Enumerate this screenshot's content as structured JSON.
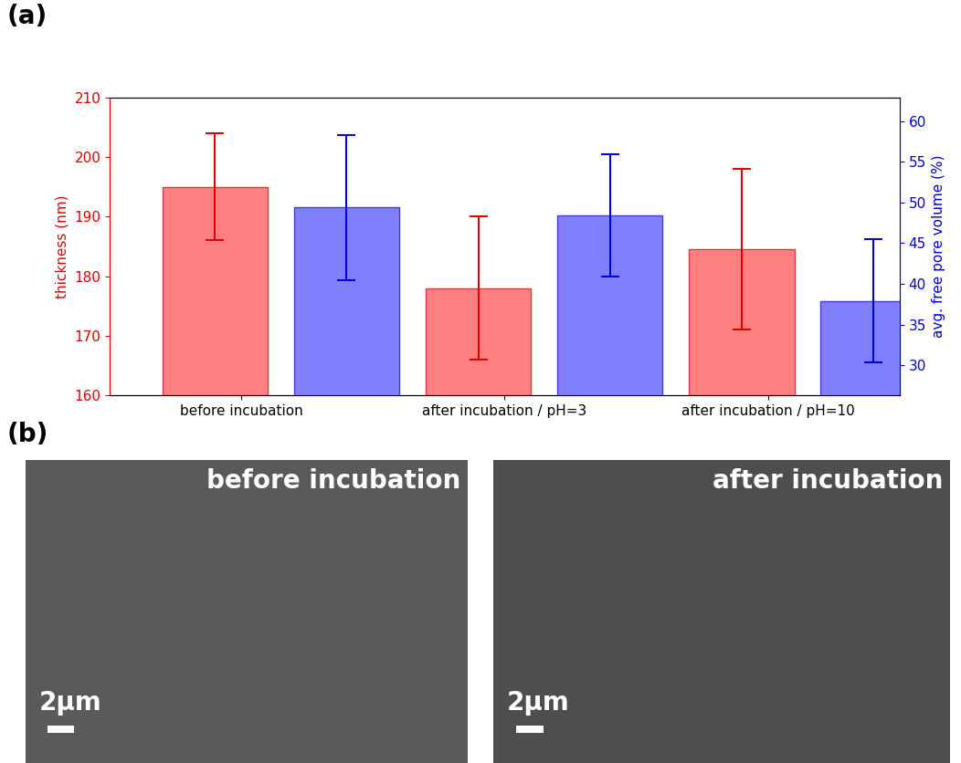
{
  "chart_data": {
    "type": "bar",
    "categories": [
      "before incubation",
      "after incubation / pH=3",
      "after incubation / pH=10"
    ],
    "y_label": "thickness (nm)",
    "y2_label": "avg. free pore volume (%)",
    "ylim": [
      160,
      210
    ],
    "yticks": [
      160,
      170,
      180,
      190,
      200,
      210
    ],
    "y2lim": [
      26.3,
      62.9
    ],
    "y2ticks": [
      30,
      35,
      40,
      45,
      50,
      55,
      60
    ],
    "series": [
      {
        "color": "#ff8080",
        "values": [
          195,
          178,
          184.5
        ],
        "errors": [
          9,
          12,
          13.5
        ]
      },
      {
        "color": "#8080ff",
        "values": [
          49.4,
          48.4,
          37.9
        ],
        "errors": [
          8.9,
          7.5,
          7.6
        ],
        "axis": "y2"
      }
    ]
  },
  "panel_labels": [
    "(a)",
    "(b)"
  ],
  "images": [
    {
      "label": "before incubation",
      "scale_bar": "2µm"
    },
    {
      "label": "after incubation",
      "scale_bar": "2µm"
    }
  ]
}
